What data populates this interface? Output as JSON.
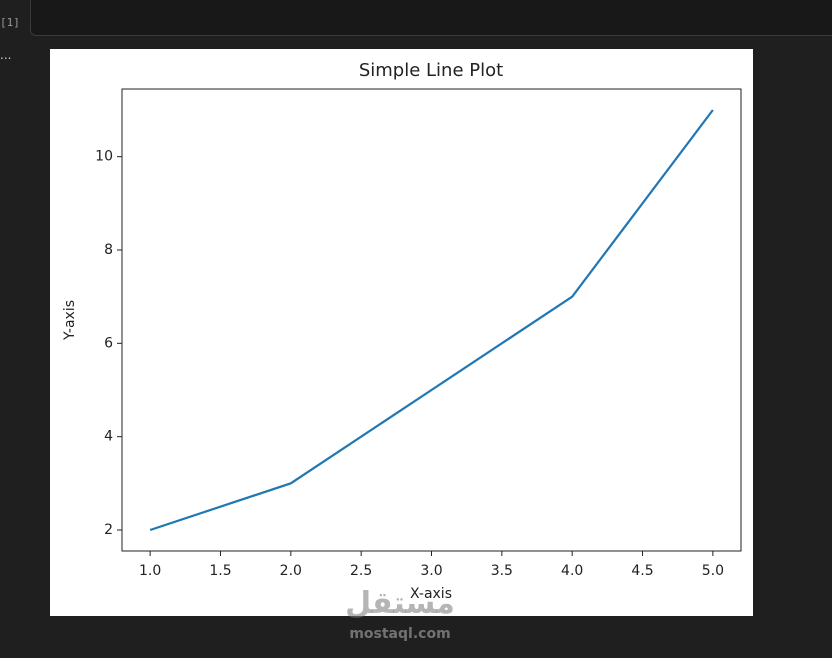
{
  "cell": {
    "execution_count": "[1]",
    "output_marker": "..."
  },
  "watermark": {
    "arabic": "مستقل",
    "site": "mostaql.com"
  },
  "chart_data": {
    "type": "line",
    "title": "Simple Line Plot",
    "x_label": "X-axis",
    "y_label": "Y-axis",
    "x": [
      1,
      2,
      3,
      4,
      5
    ],
    "values": [
      2,
      3,
      5,
      7,
      11
    ],
    "color": "#1f77b4",
    "xlim": [
      0.8,
      5.2
    ],
    "ylim": [
      1.55,
      11.45
    ],
    "xticks": [
      {
        "value": 1,
        "label": "1.0"
      },
      {
        "value": 1.5,
        "label": "1.5"
      },
      {
        "value": 2,
        "label": "2.0"
      },
      {
        "value": 2.5,
        "label": "2.5"
      },
      {
        "value": 3,
        "label": "3.0"
      },
      {
        "value": 3.5,
        "label": "3.5"
      },
      {
        "value": 4,
        "label": "4.0"
      },
      {
        "value": 4.5,
        "label": "4.5"
      },
      {
        "value": 5,
        "label": "5.0"
      }
    ],
    "yticks": [
      2,
      4,
      6,
      8,
      10
    ],
    "grid": false
  }
}
